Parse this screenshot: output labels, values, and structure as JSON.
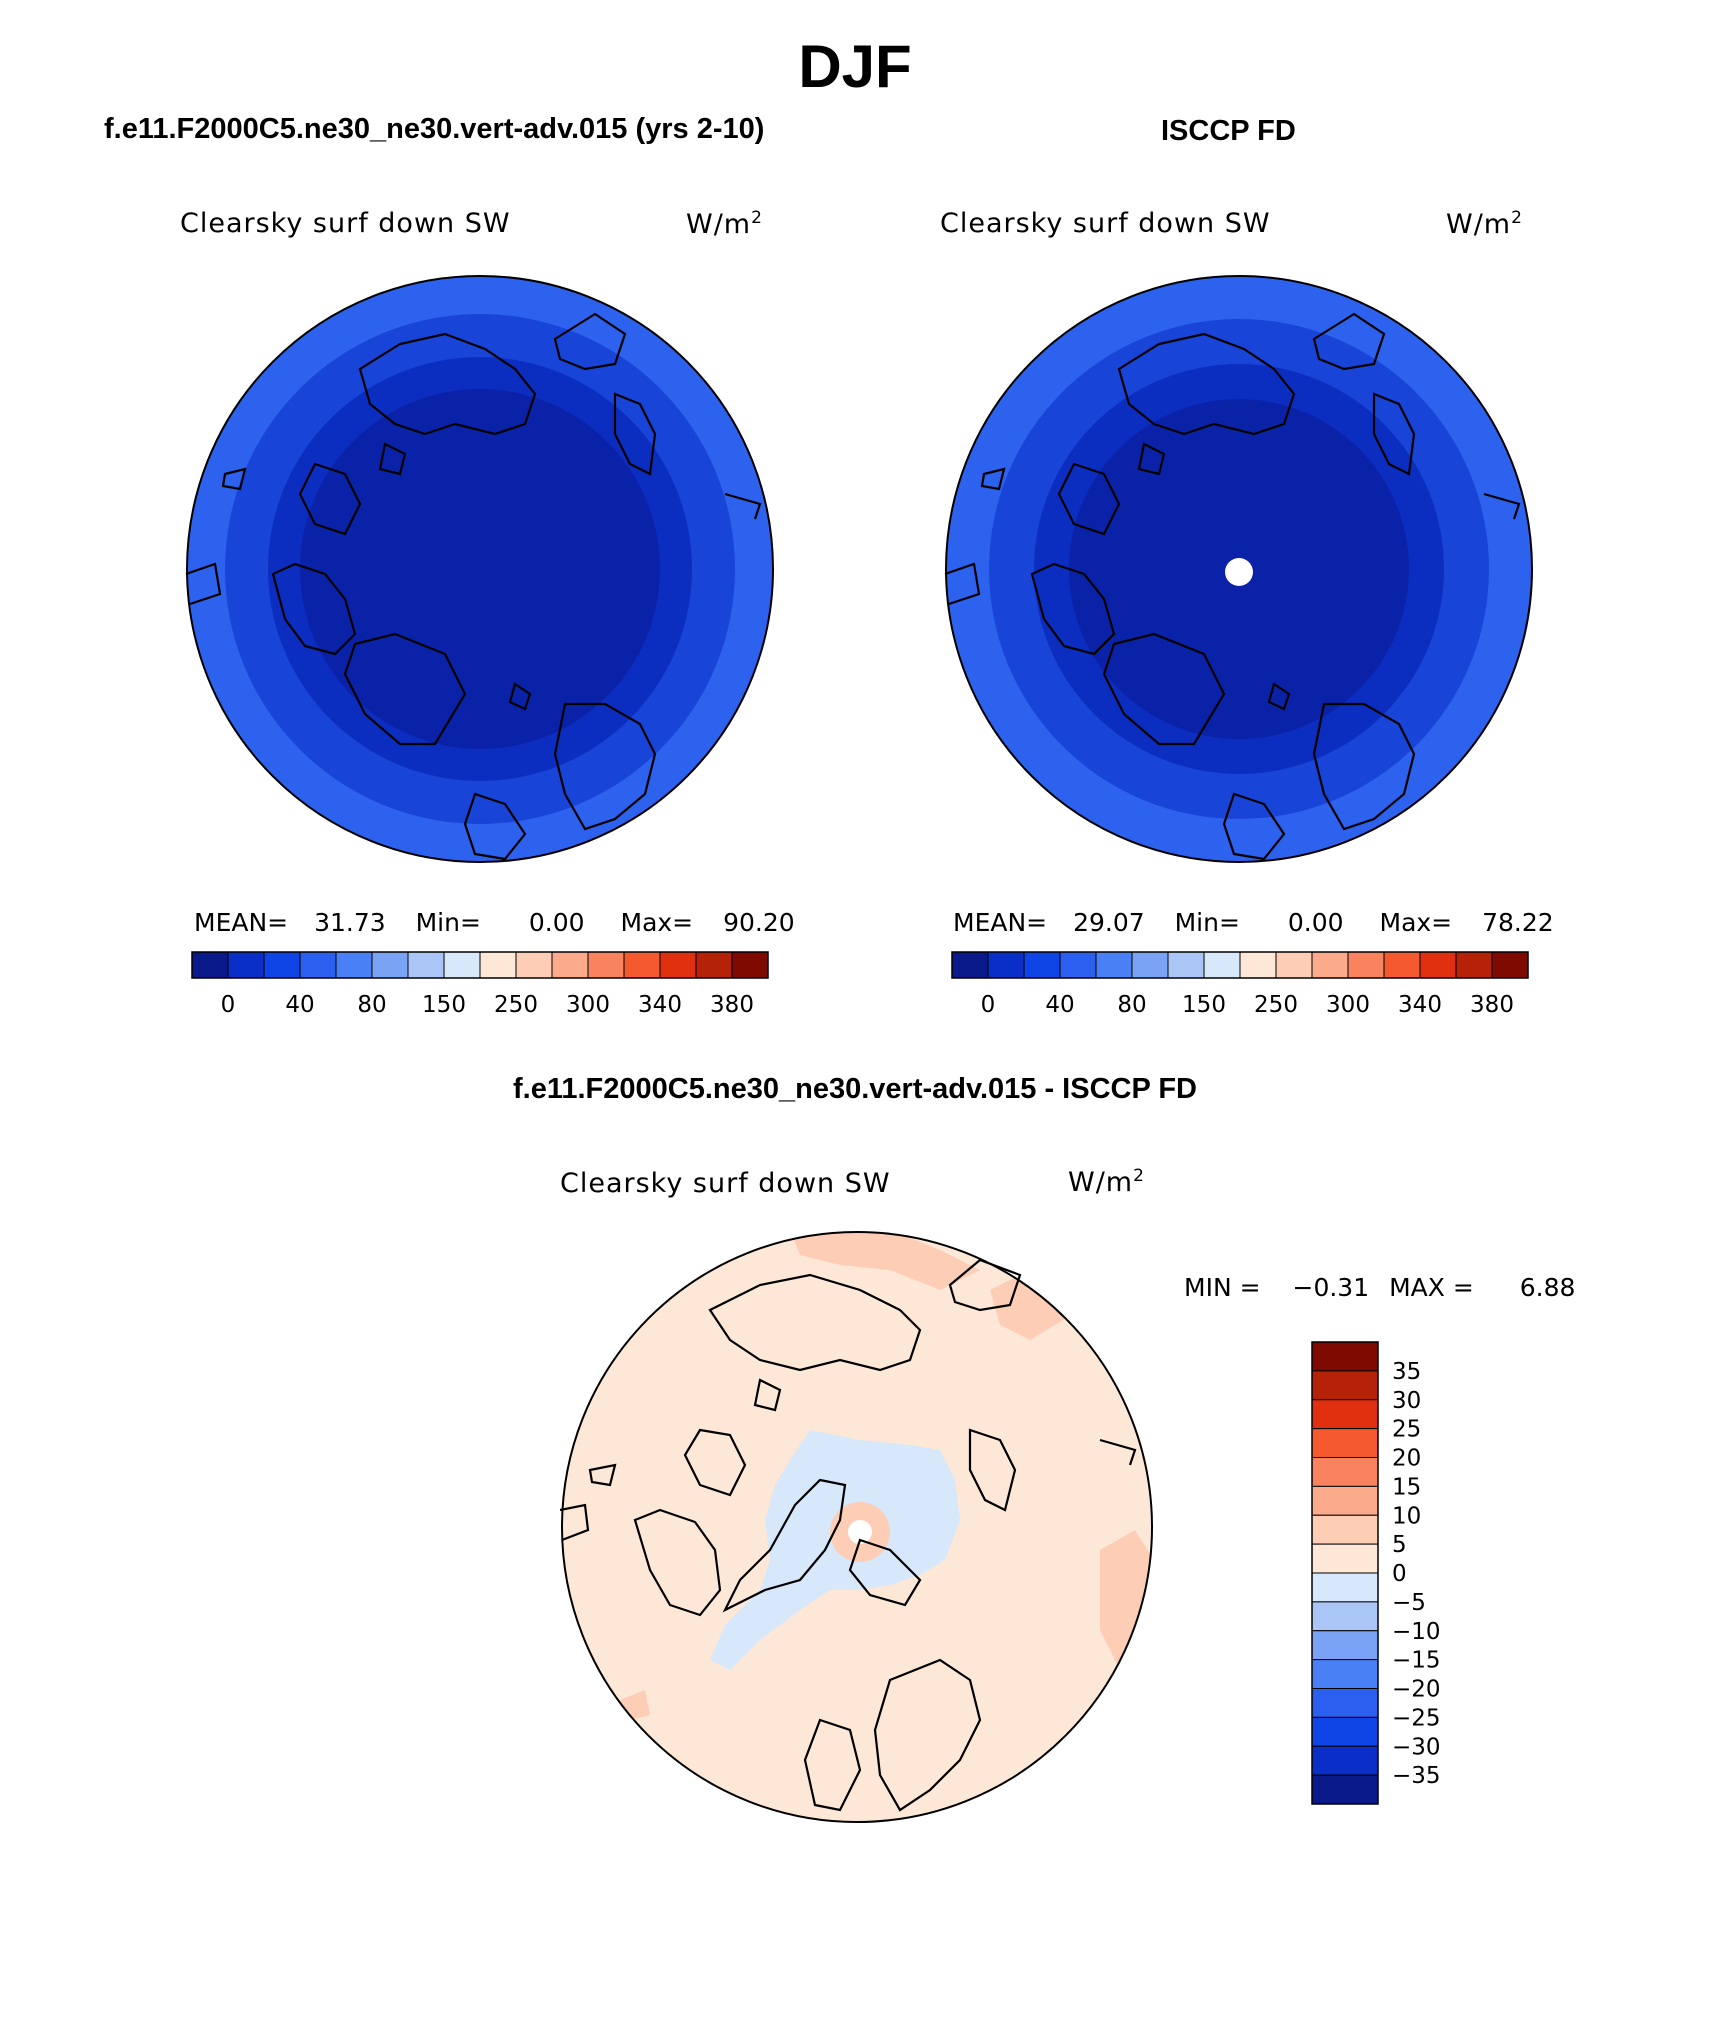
{
  "figure": {
    "title": "DJF"
  },
  "colors": {
    "blues": [
      "#0a1a8a",
      "#0a2fc8",
      "#0f44e6",
      "#2a5ff0",
      "#4a80f5",
      "#7ba3f5",
      "#aac6f7",
      "#d6e8fa"
    ],
    "reds": [
      "#fde8d8",
      "#fdcdb5",
      "#fbab8c",
      "#f8835e",
      "#f45a2e",
      "#e03010",
      "#b52208",
      "#7e0a02"
    ],
    "coast": "#000000",
    "ring_blues": [
      "#2d62ee",
      "#1844d8",
      "#0c2ec0",
      "#0a22a8"
    ]
  },
  "chart_data": [
    {
      "type": "heatmap",
      "projection": "polar-stereographic-north",
      "panel_title": "f.e11.F2000C5.ne30_ne30.vert-adv.015 (yrs 2-10)",
      "left_label": "Clearsky surf down SW",
      "units": "W/m",
      "units_exp": "2",
      "stats": {
        "mean_label": "MEAN=",
        "mean": "31.73",
        "min_label": "Min=",
        "min": "0.00",
        "max_label": "Max=",
        "max": "90.20"
      },
      "colorbar_ticks": [
        "0",
        "40",
        "80",
        "150",
        "250",
        "300",
        "340",
        "380"
      ]
    },
    {
      "type": "heatmap",
      "projection": "polar-stereographic-north",
      "panel_title": "ISCCP FD",
      "left_label": "Clearsky surf down SW",
      "units": "W/m",
      "units_exp": "2",
      "stats": {
        "mean_label": "MEAN=",
        "mean": "29.07",
        "min_label": "Min=",
        "min": "0.00",
        "max_label": "Max=",
        "max": "78.22"
      },
      "colorbar_ticks": [
        "0",
        "40",
        "80",
        "150",
        "250",
        "300",
        "340",
        "380"
      ]
    },
    {
      "type": "heatmap",
      "projection": "polar-stereographic-north",
      "panel_title": "f.e11.F2000C5.ne30_ne30.vert-adv.015 - ISCCP FD",
      "left_label": "Clearsky surf down SW",
      "units": "W/m",
      "units_exp": "2",
      "stats": {
        "min_label": "MIN =",
        "min": "−0.31",
        "max_label": "MAX =",
        "max": "6.88"
      },
      "colorbar_ticks": [
        "35",
        "30",
        "25",
        "20",
        "15",
        "10",
        "5",
        "0",
        "−5",
        "−10",
        "−15",
        "−20",
        "−25",
        "−30",
        "−35"
      ]
    }
  ]
}
